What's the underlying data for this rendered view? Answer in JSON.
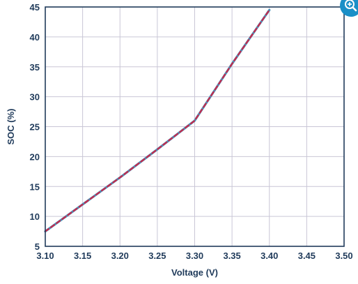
{
  "chart_data": {
    "type": "line",
    "title": "",
    "xlabel": "Voltage (V)",
    "ylabel": "SOC (%)",
    "xlim": [
      3.1,
      3.5
    ],
    "ylim": [
      5,
      45
    ],
    "x_ticks": [
      "3.10",
      "3.15",
      "3.20",
      "3.25",
      "3.30",
      "3.35",
      "3.40",
      "3.45",
      "3.50"
    ],
    "y_ticks": [
      "5",
      "10",
      "15",
      "20",
      "25",
      "30",
      "35",
      "40",
      "45"
    ],
    "grid": true,
    "series": [
      {
        "color": "#4a90b8",
        "style": "solid",
        "x": [
          3.1,
          3.15,
          3.2,
          3.25,
          3.3,
          3.35,
          3.4
        ],
        "y": [
          7.5,
          12.0,
          16.5,
          21.2,
          26.0,
          35.5,
          44.5
        ]
      },
      {
        "color": "#c8284a",
        "style": "dashed",
        "x": [
          3.1,
          3.15,
          3.2,
          3.25,
          3.3,
          3.35,
          3.4
        ],
        "y": [
          7.5,
          12.0,
          16.5,
          21.2,
          26.0,
          35.5,
          44.5
        ]
      }
    ]
  },
  "controls": {
    "zoom_icon": "zoom-in-icon",
    "zoom_color": "#1a8fc7"
  }
}
